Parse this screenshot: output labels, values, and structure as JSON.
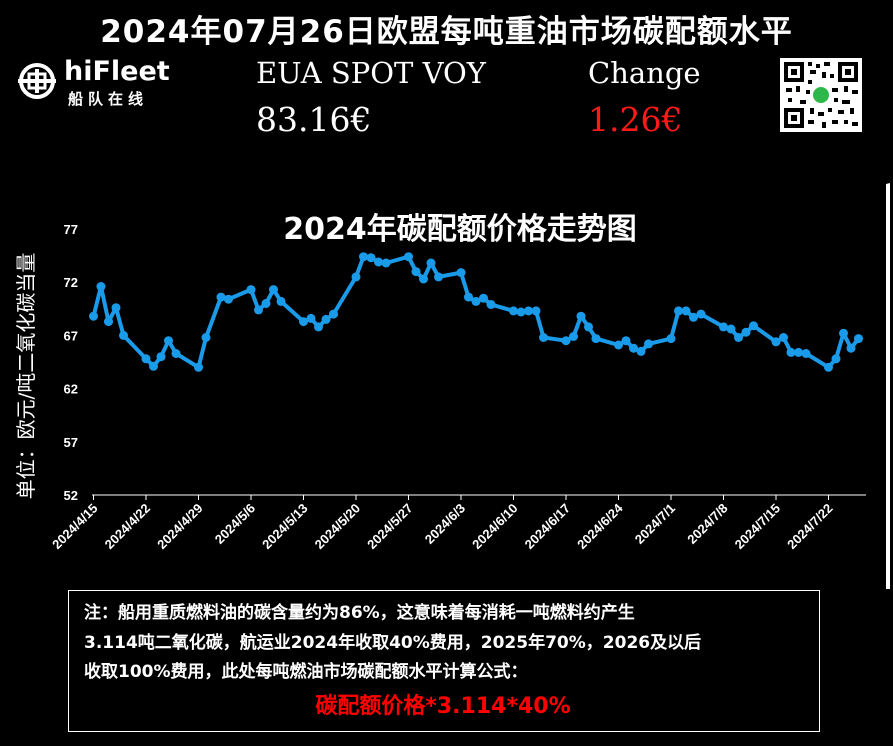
{
  "header": {
    "title": "2024年07月26日欧盟每吨重油市场碳配额水平"
  },
  "logo": {
    "name": "hiFleet",
    "subtitle": "船队在线"
  },
  "price": {
    "label": "EUA SPOT VOY",
    "value": "83.16€"
  },
  "change": {
    "label": "Change",
    "value": "1.26€",
    "color": "#ff1a1a"
  },
  "qr": {
    "icon": "qr-code-icon"
  },
  "note": {
    "line1": "注：船用重质燃料油的碳含量约为86%，这意味着每消耗一吨燃料约产生",
    "line2": "3.114吨二氧化碳，航运业2024年收取40%费用，2025年70%，2026及以后",
    "line3": "收取100%费用，此处每吨燃油市场碳配额水平计算公式：",
    "formula": "碳配额价格*3.114*40%"
  },
  "chart_data": {
    "type": "line",
    "title": "2024年碳配额价格走势图",
    "ylabel": "单位：欧元/吨二氧化碳当量",
    "xlabel": "",
    "ylim": [
      52,
      77
    ],
    "yticks": [
      "77",
      "72",
      "67",
      "62",
      "57",
      "52"
    ],
    "xticks": [
      "2024/4/15",
      "2024/4/22",
      "2024/4/29",
      "2024/5/6",
      "2024/5/13",
      "2024/5/20",
      "2024/5/27",
      "2024/6/3",
      "2024/6/10",
      "2024/6/17",
      "2024/6/24",
      "2024/7/1",
      "2024/7/8",
      "2024/7/15",
      "2024/7/22"
    ],
    "grid": false,
    "color": "#1a9bea",
    "series": [
      {
        "x": [
          "2024/4/15",
          "2024/4/16",
          "2024/4/17",
          "2024/4/18",
          "2024/4/19",
          "2024/4/22",
          "2024/4/23",
          "2024/4/24",
          "2024/4/25",
          "2024/4/26",
          "2024/4/29",
          "2024/4/30",
          "2024/5/2",
          "2024/5/3",
          "2024/5/6",
          "2024/5/7",
          "2024/5/8",
          "2024/5/9",
          "2024/5/10",
          "2024/5/13",
          "2024/5/14",
          "2024/5/15",
          "2024/5/16",
          "2024/5/17",
          "2024/5/20",
          "2024/5/21",
          "2024/5/22",
          "2024/5/23",
          "2024/5/24",
          "2024/5/27",
          "2024/5/28",
          "2024/5/29",
          "2024/5/30",
          "2024/5/31",
          "2024/6/3",
          "2024/6/4",
          "2024/6/5",
          "2024/6/6",
          "2024/6/7",
          "2024/6/10",
          "2024/6/11",
          "2024/6/12",
          "2024/6/13",
          "2024/6/14",
          "2024/6/17",
          "2024/6/18",
          "2024/6/19",
          "2024/6/20",
          "2024/6/21",
          "2024/6/24",
          "2024/6/25",
          "2024/6/26",
          "2024/6/27",
          "2024/6/28",
          "2024/7/1",
          "2024/7/2",
          "2024/7/3",
          "2024/7/4",
          "2024/7/5",
          "2024/7/8",
          "2024/7/9",
          "2024/7/10",
          "2024/7/11",
          "2024/7/12",
          "2024/7/15",
          "2024/7/16",
          "2024/7/17",
          "2024/7/18",
          "2024/7/19",
          "2024/7/22",
          "2024/7/23",
          "2024/7/24",
          "2024/7/25",
          "2024/7/26"
        ],
        "values": [
          68.8,
          71.6,
          68.3,
          69.6,
          67.0,
          64.8,
          64.1,
          65.0,
          66.5,
          65.3,
          64.0,
          66.8,
          70.6,
          70.4,
          71.3,
          69.4,
          70.0,
          71.3,
          70.2,
          68.3,
          68.6,
          67.8,
          68.5,
          69.0,
          72.5,
          74.4,
          74.3,
          73.9,
          73.8,
          74.4,
          73.0,
          72.3,
          73.8,
          72.5,
          72.9,
          70.6,
          70.2,
          70.5,
          69.9,
          69.3,
          69.2,
          69.3,
          69.3,
          66.8,
          66.5,
          66.9,
          68.8,
          67.8,
          66.7,
          66.1,
          66.5,
          65.8,
          65.5,
          66.2,
          66.7,
          69.3,
          69.3,
          68.7,
          69.0,
          67.8,
          67.6,
          66.8,
          67.3,
          67.9,
          66.4,
          66.8,
          65.4,
          65.4,
          65.3,
          64.0,
          64.8,
          67.2,
          65.8,
          66.7
        ]
      }
    ]
  }
}
